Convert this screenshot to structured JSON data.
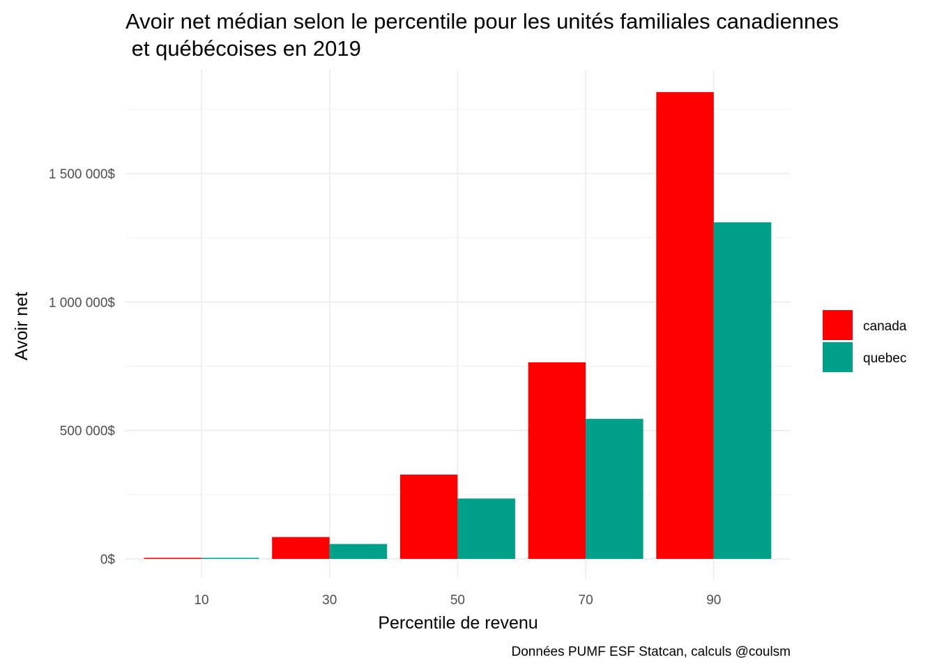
{
  "chart_data": {
    "type": "bar",
    "title_lines": [
      "Avoir net médian selon le percentile pour les unités familiales canadiennes",
      " et québécoises en 2019"
    ],
    "xlabel": "Percentile de revenu",
    "ylabel": "Avoir net",
    "caption": "Données PUMF ESF Statcan, calculs @coulsm",
    "categories": [
      "10",
      "30",
      "50",
      "70",
      "90"
    ],
    "series": [
      {
        "name": "canada",
        "color": "#ff0000",
        "values": [
          3000,
          85000,
          328000,
          765000,
          1817000
        ]
      },
      {
        "name": "quebec",
        "color": "#00a08a",
        "values": [
          2000,
          58000,
          235000,
          545000,
          1310000
        ]
      }
    ],
    "ylim": [
      -80000,
      1900000
    ],
    "y_ticks": [
      0,
      500000,
      1000000,
      1500000
    ],
    "y_tick_labels": [
      "0$",
      "500 000$",
      "1 000 000$",
      "1 500 000$"
    ],
    "grid": true,
    "legend_position": "right"
  }
}
